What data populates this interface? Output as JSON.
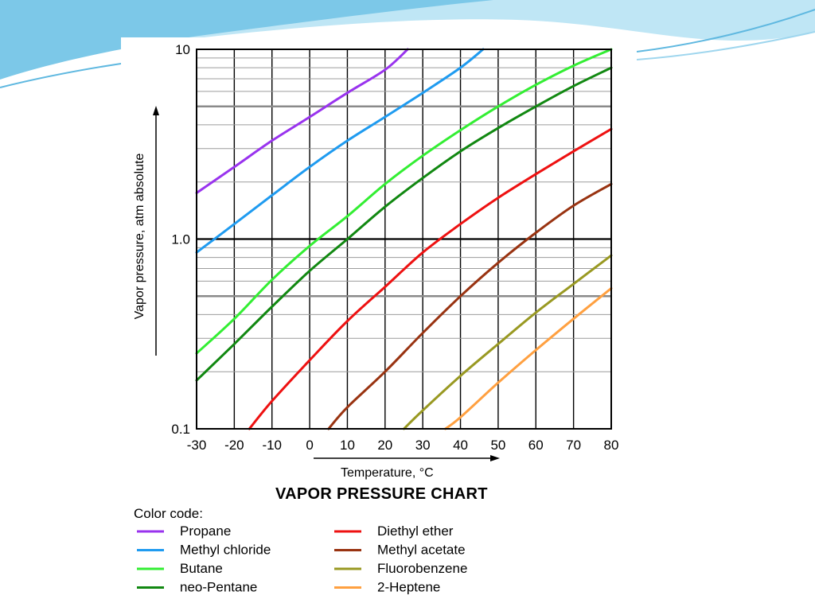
{
  "slide": {
    "theme_colors": {
      "sky": "#5fb8e0",
      "light": "#bfe6f5",
      "pale": "#e8f6fc"
    }
  },
  "chart_data": {
    "type": "line",
    "title": "VAPOR PRESSURE CHART",
    "xlabel": "Temperature, °C",
    "ylabel": "Vapor pressure, atm absolute",
    "xlim": [
      -30,
      80
    ],
    "ylim": [
      0.1,
      10
    ],
    "y_scale": "log",
    "x_ticks": [
      -30,
      -20,
      -10,
      0,
      10,
      20,
      30,
      40,
      50,
      60,
      70,
      80
    ],
    "x_tick_labels": [
      "-30",
      "-20",
      "-10",
      "0",
      "10",
      "20",
      "30",
      "40",
      "50",
      "60",
      "70",
      "80"
    ],
    "y_ticks": [
      0.1,
      1.0,
      10
    ],
    "y_tick_labels": [
      "0.1",
      "1.0",
      "10"
    ],
    "grid": true,
    "legend_heading": "Color code:",
    "legend_position": "bottom",
    "series": [
      {
        "name": "Propane",
        "color": "#9933ee",
        "x": [
          -30,
          -20,
          -10,
          0,
          10,
          20,
          26
        ],
        "y": [
          1.75,
          2.4,
          3.3,
          4.4,
          5.9,
          7.8,
          10
        ]
      },
      {
        "name": "Methyl chloride",
        "color": "#1f9bf0",
        "x": [
          -30,
          -20,
          -10,
          0,
          10,
          20,
          30,
          40,
          46
        ],
        "y": [
          0.85,
          1.2,
          1.7,
          2.4,
          3.3,
          4.4,
          5.9,
          8.0,
          10
        ]
      },
      {
        "name": "Butane",
        "color": "#33ee33",
        "x": [
          -30,
          -20,
          -10,
          0,
          10,
          20,
          30,
          40,
          50,
          60,
          70,
          80
        ],
        "y": [
          0.25,
          0.38,
          0.61,
          0.92,
          1.32,
          1.95,
          2.75,
          3.75,
          5.0,
          6.5,
          8.2,
          10
        ]
      },
      {
        "name": "neo-Pentane",
        "color": "#118811",
        "x": [
          -30,
          -20,
          -10,
          0,
          10,
          20,
          30,
          40,
          50,
          60,
          70,
          80
        ],
        "y": [
          0.18,
          0.28,
          0.44,
          0.68,
          1.0,
          1.48,
          2.1,
          2.9,
          3.85,
          5.0,
          6.4,
          8.0
        ]
      },
      {
        "name": "Diethyl ether",
        "color": "#ee1111",
        "x": [
          -16,
          -10,
          0,
          10,
          20,
          30,
          40,
          50,
          60,
          70,
          80
        ],
        "y": [
          0.1,
          0.14,
          0.23,
          0.37,
          0.56,
          0.85,
          1.2,
          1.65,
          2.2,
          2.9,
          3.8
        ]
      },
      {
        "name": "Methyl acetate",
        "color": "#993311",
        "x": [
          5,
          10,
          20,
          30,
          40,
          50,
          60,
          70,
          80
        ],
        "y": [
          0.1,
          0.13,
          0.2,
          0.32,
          0.5,
          0.75,
          1.08,
          1.5,
          1.95
        ]
      },
      {
        "name": "Fluorobenzene",
        "color": "#999922",
        "x": [
          25,
          30,
          40,
          50,
          60,
          70,
          80
        ],
        "y": [
          0.1,
          0.125,
          0.19,
          0.28,
          0.41,
          0.58,
          0.82
        ]
      },
      {
        "name": "2-Heptene",
        "color": "#ffa040",
        "x": [
          36,
          40,
          50,
          60,
          70,
          80
        ],
        "y": [
          0.1,
          0.115,
          0.175,
          0.26,
          0.38,
          0.55
        ]
      }
    ]
  }
}
